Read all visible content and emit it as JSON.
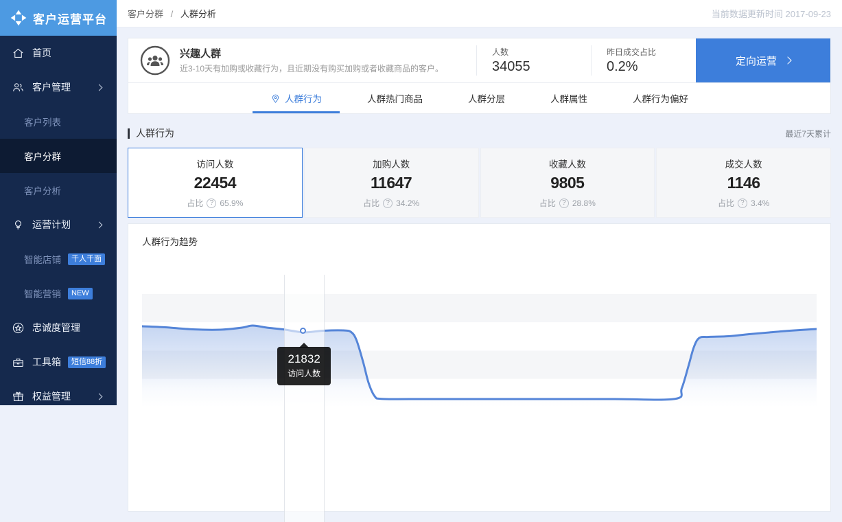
{
  "app": {
    "title": "客户运营平台",
    "update_time": "当前数据更新时间 2017-09-23"
  },
  "breadcrumb": {
    "items": [
      "客户分群",
      "人群分析"
    ],
    "separator": "/"
  },
  "sidebar": {
    "items": [
      {
        "label": "首页",
        "icon": "home-icon"
      },
      {
        "label": "客户管理",
        "icon": "users-icon",
        "chevron": true
      },
      {
        "label": "客户列表",
        "type": "sub"
      },
      {
        "label": "客户分群",
        "type": "sub",
        "active": true
      },
      {
        "label": "客户分析",
        "type": "sub"
      },
      {
        "label": "运营计划",
        "icon": "bulb-icon",
        "chevron": true
      },
      {
        "label": "智能店铺",
        "type": "sub",
        "badge": "千人千面"
      },
      {
        "label": "智能营销",
        "type": "sub",
        "badge": "NEW"
      },
      {
        "label": "忠诚度管理",
        "icon": "star-circle-icon"
      },
      {
        "label": "工具箱",
        "icon": "toolbox-icon",
        "badge": "短信88折"
      },
      {
        "label": "权益管理",
        "icon": "gift-icon",
        "chevron": true
      }
    ]
  },
  "audience_card": {
    "name": "兴趣人群",
    "description": "近3-10天有加购或收藏行为，且近期没有购买加购或者收藏商品的客户。",
    "count_label": "人数",
    "count_value": "34055",
    "deal_label": "昨日成交占比",
    "deal_value": "0.2%",
    "cta_label": "定向运营"
  },
  "tabs": [
    {
      "label": "人群行为",
      "active": true
    },
    {
      "label": "人群热门商品"
    },
    {
      "label": "人群分层"
    },
    {
      "label": "人群属性"
    },
    {
      "label": "人群行为偏好"
    }
  ],
  "section": {
    "title": "人群行为",
    "range_label": "最近7天累计"
  },
  "stats": [
    {
      "label": "访问人数",
      "value": "22454",
      "ratio_label": "占比",
      "ratio": "65.9%",
      "active": true
    },
    {
      "label": "加购人数",
      "value": "11647",
      "ratio_label": "占比",
      "ratio": "34.2%"
    },
    {
      "label": "收藏人数",
      "value": "9805",
      "ratio_label": "占比",
      "ratio": "28.8%"
    },
    {
      "label": "成交人数",
      "value": "1146",
      "ratio_label": "占比",
      "ratio": "3.4%"
    }
  ],
  "chart_data": {
    "type": "area",
    "title": "人群行为趋势",
    "xlabel": "",
    "ylabel": "访问人数",
    "ylim": [
      0,
      33000
    ],
    "grid": "horizontal-bands",
    "legend": "none",
    "series": [
      {
        "name": "访问人数",
        "x_fraction": [
          0.0,
          0.034,
          0.075,
          0.116,
          0.148,
          0.164,
          0.185,
          0.209,
          0.24,
          0.268,
          0.298,
          0.31,
          0.318,
          0.328,
          0.336,
          0.345,
          0.355,
          0.4,
          0.5,
          0.6,
          0.7,
          0.79,
          0.8,
          0.81,
          0.818,
          0.826,
          0.84,
          0.87,
          0.9,
          0.93,
          0.96,
          1.0
        ],
        "values": [
          23600,
          23300,
          22700,
          22600,
          23200,
          23800,
          23200,
          22700,
          21832,
          22300,
          22400,
          21900,
          19500,
          13000,
          7000,
          3200,
          2450,
          2400,
          2400,
          2400,
          2400,
          2450,
          5500,
          12000,
          17500,
          20200,
          20500,
          20700,
          21300,
          21800,
          22300,
          22800
        ]
      }
    ],
    "hover": {
      "index": 8,
      "value": "21832",
      "label": "访问人数"
    },
    "colors": {
      "line": "#5585D8",
      "fill_top": "rgba(85,133,216,0.34)",
      "stripe": "#F5F6F8",
      "accent": "#3D7EDB"
    }
  }
}
